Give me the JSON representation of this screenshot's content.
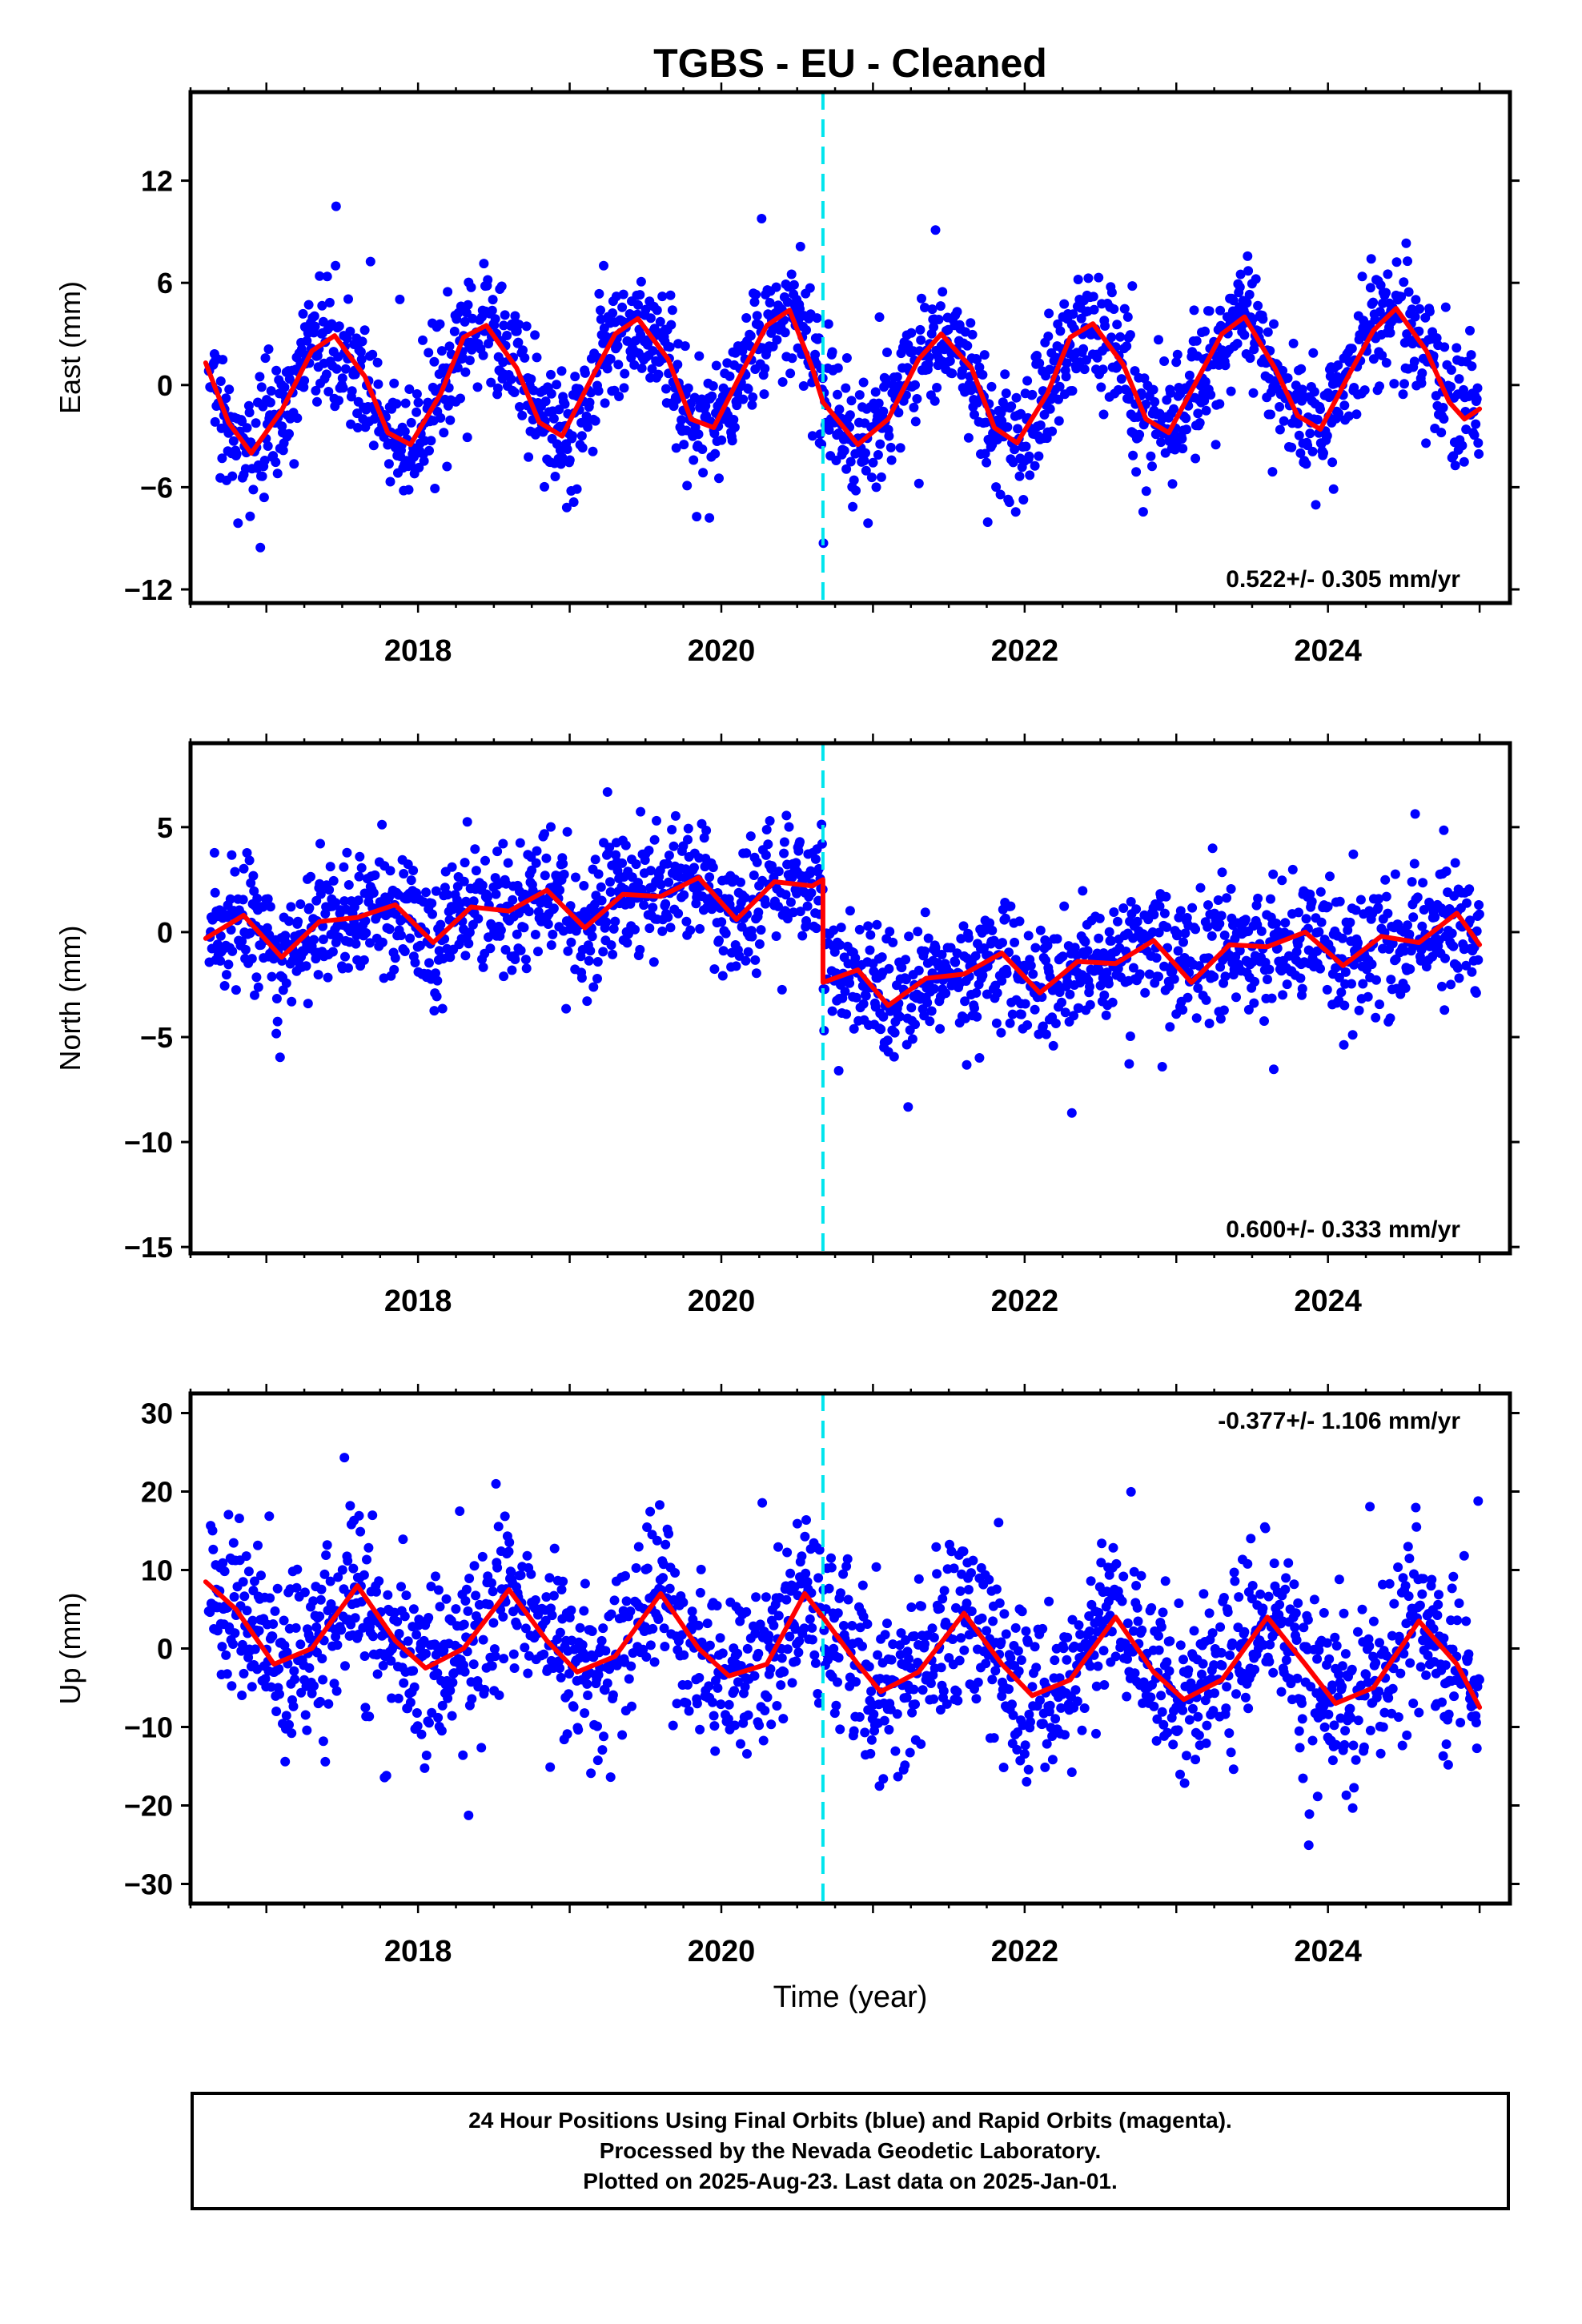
{
  "title": "TGBS  - EU - Cleaned",
  "xlabel": "Time (year)",
  "footer": {
    "line1": "24 Hour Positions Using Final Orbits (blue) and Rapid Orbits (magenta).",
    "line2": "Processed by the Nevada Geodetic Laboratory.",
    "line3": "Plotted on 2025-Aug-23. Last data on 2025-Jan-01."
  },
  "colors": {
    "points": "#0000ff",
    "model": "#ff0000",
    "offset_line": "#00e5ee"
  },
  "offset_epoch": 2020.67,
  "chart_data": [
    {
      "type": "scatter",
      "component": "east",
      "ylabel": "East (mm)",
      "xlim": [
        2016.5,
        2025.2
      ],
      "ylim": [
        -12.8,
        17.2
      ],
      "yticks": [
        12,
        6,
        0,
        -6,
        -12
      ],
      "xticks": [
        2018,
        2020,
        2022,
        2024
      ],
      "velocity_label": "0.522+/- 0.305 mm/yr",
      "model": {
        "x": [
          2016.6,
          2016.75,
          2016.9,
          2017.1,
          2017.3,
          2017.45,
          2017.65,
          2017.8,
          2017.95,
          2018.15,
          2018.3,
          2018.45,
          2018.65,
          2018.8,
          2018.95,
          2019.15,
          2019.3,
          2019.45,
          2019.65,
          2019.8,
          2019.95,
          2020.15,
          2020.3,
          2020.45,
          2020.6,
          2020.67,
          2020.9,
          2021.1,
          2021.3,
          2021.45,
          2021.65,
          2021.8,
          2021.95,
          2022.15,
          2022.3,
          2022.45,
          2022.65,
          2022.8,
          2022.95,
          2023.15,
          2023.3,
          2023.45,
          2023.65,
          2023.8,
          2023.95,
          2024.15,
          2024.3,
          2024.45,
          2024.65,
          2024.8,
          2024.9,
          2025.0
        ],
        "y": [
          1.3,
          -2.2,
          -4.0,
          -1.5,
          2.0,
          2.9,
          0.5,
          -2.8,
          -3.5,
          -0.5,
          2.8,
          3.5,
          1.0,
          -2.2,
          -3.0,
          0.5,
          3.0,
          3.9,
          1.5,
          -2.0,
          -2.5,
          1.0,
          3.5,
          4.4,
          1.0,
          -1.0,
          -3.5,
          -2.0,
          1.5,
          3.0,
          1.0,
          -2.5,
          -3.4,
          -0.5,
          2.8,
          3.6,
          1.2,
          -2.0,
          -2.8,
          0.5,
          3.0,
          4.0,
          1.0,
          -1.8,
          -2.6,
          0.8,
          3.2,
          4.5,
          2.0,
          -1.0,
          -2.0,
          -1.4
        ]
      }
    },
    {
      "type": "scatter",
      "component": "north",
      "ylabel": "North (mm)",
      "xlim": [
        2016.5,
        2025.2
      ],
      "ylim": [
        -15.3,
        9.0
      ],
      "yticks": [
        5,
        0,
        -5,
        -10,
        -15
      ],
      "xticks": [
        2018,
        2020,
        2022,
        2024
      ],
      "velocity_label": "0.600+/- 0.333 mm/yr",
      "model": {
        "x": [
          2016.6,
          2016.85,
          2017.1,
          2017.35,
          2017.6,
          2017.85,
          2018.1,
          2018.35,
          2018.6,
          2018.85,
          2019.1,
          2019.35,
          2019.6,
          2019.85,
          2020.1,
          2020.35,
          2020.6,
          2020.67,
          2020.67,
          2020.9,
          2021.1,
          2021.35,
          2021.6,
          2021.85,
          2022.1,
          2022.35,
          2022.6,
          2022.85,
          2023.1,
          2023.35,
          2023.6,
          2023.85,
          2024.1,
          2024.35,
          2024.6,
          2024.85,
          2025.0
        ],
        "y": [
          -0.3,
          0.8,
          -1.2,
          0.5,
          0.7,
          1.3,
          -0.5,
          1.2,
          1.0,
          2.0,
          0.2,
          1.8,
          1.7,
          2.6,
          0.6,
          2.4,
          2.2,
          2.5,
          -2.4,
          -1.8,
          -3.5,
          -2.2,
          -2.0,
          -1.0,
          -2.9,
          -1.4,
          -1.5,
          -0.4,
          -2.4,
          -0.6,
          -0.7,
          0.0,
          -1.6,
          -0.2,
          -0.5,
          0.9,
          -0.6
        ]
      }
    },
    {
      "type": "scatter",
      "component": "up",
      "ylabel": "Up (mm)",
      "xlim": [
        2016.5,
        2025.2
      ],
      "ylim": [
        -32.5,
        32.5
      ],
      "yticks": [
        30,
        20,
        10,
        0,
        -10,
        -20,
        -30
      ],
      "xticks": [
        2018,
        2020,
        2022,
        2024
      ],
      "velocity_label": "-0.377+/- 1.106 mm/yr",
      "model": {
        "x": [
          2016.6,
          2016.8,
          2017.05,
          2017.3,
          2017.6,
          2017.85,
          2018.05,
          2018.3,
          2018.6,
          2018.85,
          2019.05,
          2019.3,
          2019.6,
          2019.85,
          2020.05,
          2020.3,
          2020.55,
          2020.67,
          2020.9,
          2021.05,
          2021.3,
          2021.6,
          2021.85,
          2022.05,
          2022.3,
          2022.6,
          2022.85,
          2023.05,
          2023.3,
          2023.6,
          2023.85,
          2024.05,
          2024.3,
          2024.6,
          2024.85,
          2025.0
        ],
        "y": [
          8.5,
          5.0,
          -2.0,
          0.0,
          8.0,
          1.0,
          -2.5,
          0.0,
          7.5,
          1.0,
          -3.0,
          -1.0,
          7.0,
          0.0,
          -3.5,
          -2.0,
          7.0,
          4.0,
          -2.0,
          -5.5,
          -3.0,
          4.5,
          -2.0,
          -6.0,
          -4.0,
          4.0,
          -3.0,
          -6.5,
          -4.0,
          4.0,
          -2.0,
          -7.0,
          -5.0,
          3.5,
          -2.0,
          -7.5
        ]
      }
    }
  ]
}
